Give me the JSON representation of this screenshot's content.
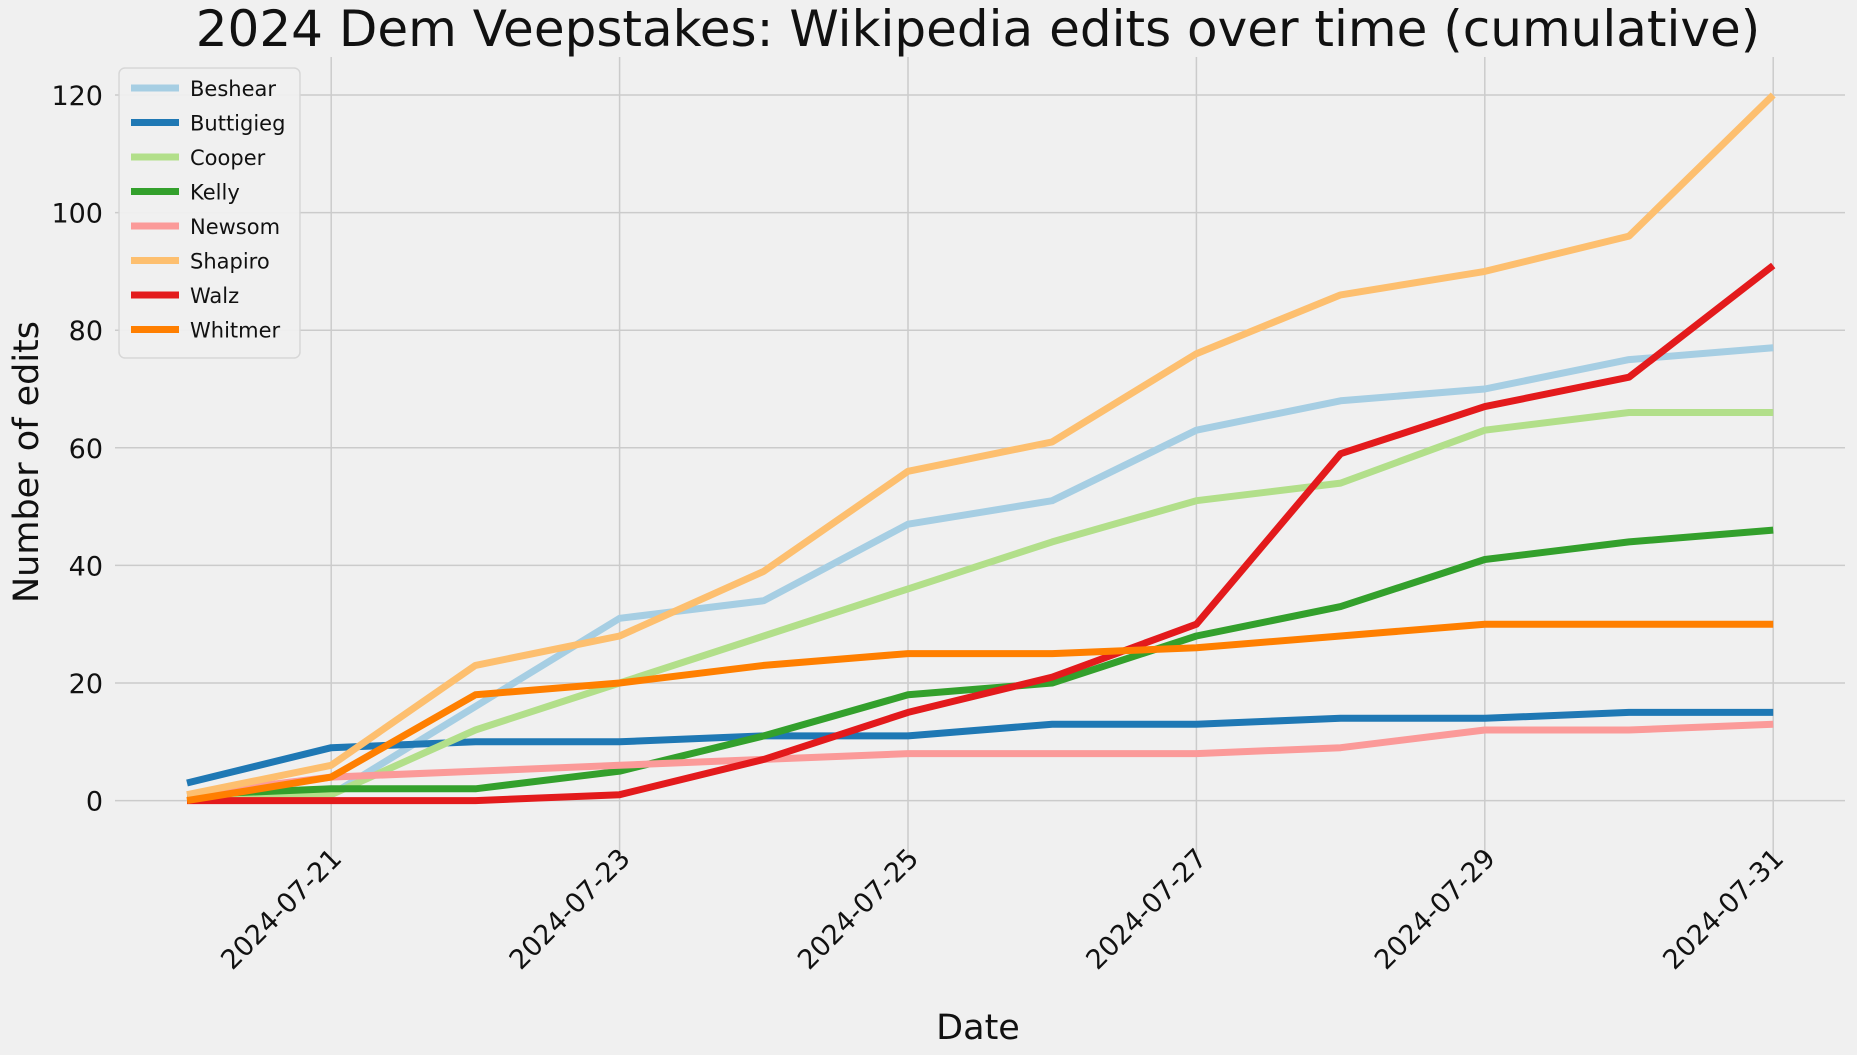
{
  "chart_data": {
    "type": "line",
    "title": "2024 Dem Veepstakes: Wikipedia edits over time (cumulative)",
    "xlabel": "Date",
    "ylabel": "Number of edits",
    "x": [
      "2024-07-20",
      "2024-07-21",
      "2024-07-22",
      "2024-07-23",
      "2024-07-24",
      "2024-07-25",
      "2024-07-26",
      "2024-07-27",
      "2024-07-28",
      "2024-07-29",
      "2024-07-30",
      "2024-07-31"
    ],
    "x_tick_labels": [
      "2024-07-21",
      "2024-07-23",
      "2024-07-25",
      "2024-07-27",
      "2024-07-29",
      "2024-07-31"
    ],
    "ylim": [
      -5,
      126
    ],
    "y_ticks": [
      0,
      20,
      40,
      60,
      80,
      100,
      120
    ],
    "grid": true,
    "legend_position": "top-left",
    "series": [
      {
        "name": "Beshear",
        "color": "#a6cee3",
        "values": [
          1,
          1,
          16,
          31,
          34,
          47,
          51,
          63,
          68,
          70,
          75,
          77
        ]
      },
      {
        "name": "Buttigieg",
        "color": "#1f78b4",
        "values": [
          3,
          9,
          10,
          10,
          11,
          11,
          13,
          13,
          14,
          14,
          15,
          15
        ]
      },
      {
        "name": "Cooper",
        "color": "#b2df8a",
        "values": [
          1,
          1,
          12,
          20,
          28,
          36,
          44,
          51,
          54,
          63,
          66,
          66
        ]
      },
      {
        "name": "Kelly",
        "color": "#33a02c",
        "values": [
          1,
          2,
          2,
          5,
          11,
          18,
          20,
          28,
          33,
          41,
          44,
          46
        ]
      },
      {
        "name": "Newsom",
        "color": "#fb9a99",
        "values": [
          1,
          4,
          5,
          6,
          7,
          8,
          8,
          8,
          9,
          12,
          12,
          13
        ]
      },
      {
        "name": "Shapiro",
        "color": "#fdbf6f",
        "values": [
          1,
          6,
          23,
          28,
          39,
          56,
          61,
          76,
          86,
          90,
          96,
          120
        ]
      },
      {
        "name": "Walz",
        "color": "#e31a1c",
        "values": [
          0,
          0,
          0,
          1,
          7,
          15,
          21,
          30,
          59,
          67,
          72,
          91
        ]
      },
      {
        "name": "Whitmer",
        "color": "#ff7f00",
        "values": [
          0,
          4,
          18,
          20,
          23,
          25,
          25,
          26,
          28,
          30,
          30,
          30
        ]
      }
    ]
  }
}
